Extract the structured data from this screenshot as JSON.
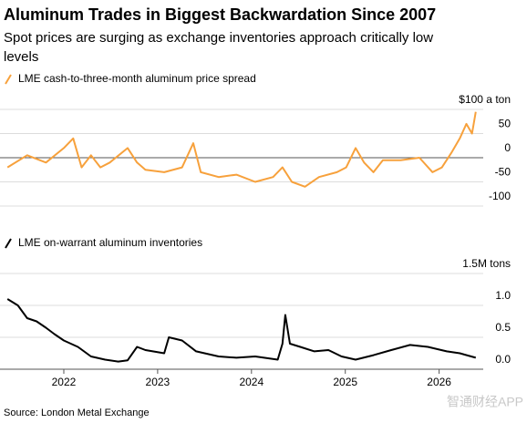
{
  "title": "Aluminum Trades in Biggest Backwardation Since 2007",
  "subtitle": [
    "Spot prices are surging as exchange inventories approach critically low",
    "levels"
  ],
  "source": "Source: London Metal Exchange",
  "watermark": "智通财经APP",
  "chart_data": [
    {
      "type": "line",
      "series": [
        {
          "name": "LME cash-to-three-month aluminum price spread",
          "color": "#f7a13c",
          "x": [
            2021.4,
            2021.61,
            2021.81,
            2022.0,
            2022.1,
            2022.19,
            2022.29,
            2022.39,
            2022.49,
            2022.68,
            2022.78,
            2022.87,
            2023.07,
            2023.26,
            2023.38,
            2023.46,
            2023.65,
            2023.84,
            2024.04,
            2024.23,
            2024.33,
            2024.43,
            2024.57,
            2024.72,
            2024.91,
            2025.01,
            2025.11,
            2025.2,
            2025.3,
            2025.4,
            2025.59,
            2025.79,
            2025.93,
            2026.03,
            2026.13,
            2026.22,
            2026.29,
            2026.35,
            2026.39
          ],
          "values": [
            -20,
            5,
            -10,
            20,
            40,
            -20,
            5,
            -20,
            -10,
            20,
            -10,
            -25,
            -30,
            -20,
            30,
            -30,
            -40,
            -35,
            -50,
            -40,
            -20,
            -50,
            -60,
            -40,
            -30,
            -20,
            20,
            -10,
            -30,
            -5,
            -5,
            0,
            -30,
            -20,
            10,
            40,
            70,
            50,
            95
          ]
        }
      ],
      "xlim": [
        2021.32,
        2026.47
      ],
      "ylim": [
        -100,
        100
      ],
      "yticks": [
        {
          "value": 100,
          "label": "$100 a ton"
        },
        50,
        0,
        -50,
        -100
      ]
    },
    {
      "type": "line",
      "series": [
        {
          "name": "LME on-warrant aluminum inventories",
          "color": "#000000",
          "x": [
            2021.4,
            2021.51,
            2021.61,
            2021.71,
            2021.81,
            2021.9,
            2022.0,
            2022.15,
            2022.29,
            2022.44,
            2022.58,
            2022.68,
            2022.78,
            2022.87,
            2023.07,
            2023.12,
            2023.26,
            2023.41,
            2023.65,
            2023.84,
            2024.04,
            2024.28,
            2024.33,
            2024.36,
            2024.41,
            2024.52,
            2024.67,
            2024.82,
            2024.96,
            2025.11,
            2025.3,
            2025.49,
            2025.69,
            2025.88,
            2026.08,
            2026.22,
            2026.39
          ],
          "values": [
            1.1,
            1.0,
            0.8,
            0.75,
            0.65,
            0.55,
            0.45,
            0.35,
            0.2,
            0.15,
            0.12,
            0.14,
            0.35,
            0.3,
            0.25,
            0.5,
            0.45,
            0.28,
            0.2,
            0.18,
            0.2,
            0.15,
            0.4,
            0.85,
            0.4,
            0.35,
            0.28,
            0.3,
            0.2,
            0.15,
            0.22,
            0.3,
            0.38,
            0.35,
            0.28,
            0.25,
            0.18
          ]
        }
      ],
      "xlim": [
        2021.32,
        2026.47
      ],
      "xticks": [
        2022,
        2023,
        2024,
        2025,
        2026
      ],
      "ylim": [
        0,
        1.5
      ],
      "yticks": [
        {
          "value": 1.5,
          "label": "1.5M tons"
        },
        {
          "value": 1,
          "label": "1.0"
        },
        0.5,
        {
          "value": 0,
          "label": "0.0"
        }
      ]
    }
  ]
}
